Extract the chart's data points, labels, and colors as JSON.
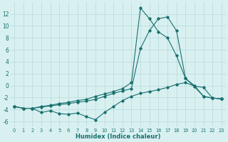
{
  "x": [
    0,
    1,
    2,
    3,
    4,
    5,
    6,
    7,
    8,
    9,
    10,
    11,
    12,
    13,
    14,
    15,
    16,
    17,
    18,
    19,
    20,
    21,
    22,
    23
  ],
  "line_top": [
    -3.5,
    -3.8,
    -3.8,
    -3.5,
    -3.3,
    -3.0,
    -2.8,
    -2.5,
    -2.3,
    -1.8,
    -1.4,
    -1.0,
    -0.5,
    0.5,
    13.0,
    11.2,
    9.0,
    8.0,
    5.0,
    1.2,
    0.0,
    -1.8,
    -2.1,
    -2.2
  ],
  "line_mid": [
    -3.5,
    -3.8,
    -3.8,
    -3.6,
    -3.4,
    -3.2,
    -3.0,
    -2.8,
    -2.6,
    -2.3,
    -1.8,
    -1.3,
    -0.9,
    -0.5,
    6.2,
    9.2,
    11.2,
    11.5,
    9.2,
    1.2,
    -0.2,
    -1.8,
    -2.1,
    -2.2
  ],
  "line_bot": [
    -3.5,
    -3.8,
    -3.8,
    -4.5,
    -4.2,
    -4.7,
    -4.8,
    -4.6,
    -5.2,
    -5.7,
    -4.5,
    -3.5,
    -2.5,
    -1.8,
    -1.3,
    -1.0,
    -0.7,
    -0.3,
    0.2,
    0.5,
    -0.1,
    -0.3,
    -2.1,
    -2.2
  ],
  "color": "#1a7070",
  "xlabel": "Humidex (Indice chaleur)",
  "bg_color": "#d8f0f0",
  "grid_color": "#b8d8d8",
  "ylim": [
    -7,
    14
  ],
  "xlim": [
    -0.5,
    23.5
  ],
  "yticks": [
    -6,
    -4,
    -2,
    0,
    2,
    4,
    6,
    8,
    10,
    12
  ],
  "xticks": [
    0,
    1,
    2,
    3,
    4,
    5,
    6,
    7,
    8,
    9,
    10,
    11,
    12,
    13,
    14,
    15,
    16,
    17,
    18,
    19,
    20,
    21,
    22,
    23
  ]
}
